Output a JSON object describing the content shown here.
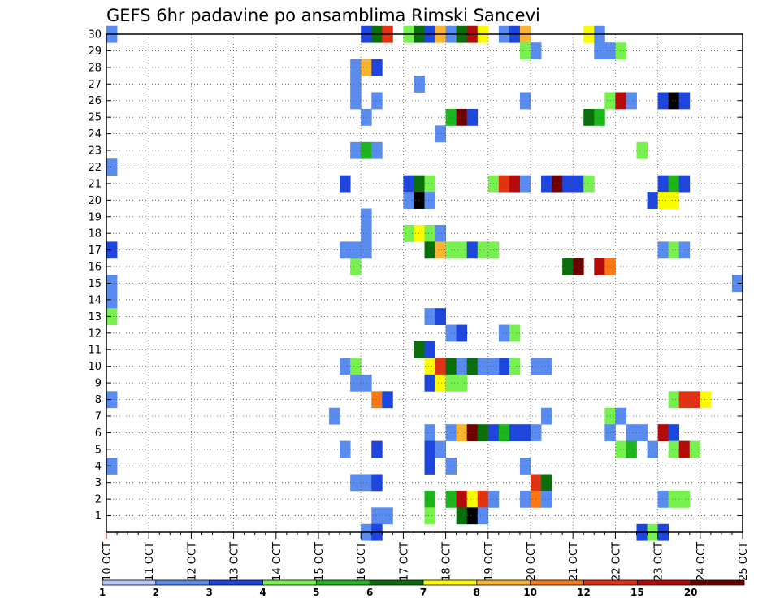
{
  "chart_data": {
    "type": "heatmap",
    "title": "GEFS 6hr padavine po ansamblima Rimski Sancevi",
    "xlabel": "",
    "ylabel": "",
    "x_tick_labels": [
      "10 OCT",
      "11 OCT",
      "12 OCT",
      "13 OCT",
      "14 OCT",
      "15 OCT",
      "16 OCT",
      "17 OCT",
      "18 OCT",
      "19 OCT",
      "20 OCT",
      "21 OCT",
      "22 OCT",
      "23 OCT",
      "24 OCT",
      "25 OCT"
    ],
    "y_tick_labels": [
      "1",
      "2",
      "3",
      "4",
      "5",
      "6",
      "7",
      "8",
      "9",
      "10",
      "11",
      "12",
      "13",
      "14",
      "15",
      "16",
      "17",
      "18",
      "19",
      "20",
      "21",
      "22",
      "23",
      "24",
      "25",
      "26",
      "27",
      "28",
      "29",
      "30"
    ],
    "xlim_steps": [
      0,
      60
    ],
    "ylim_members": [
      0,
      30
    ],
    "steps_per_day": 4,
    "grid": true,
    "colorbar": {
      "levels": [
        "1",
        "2",
        "3",
        "4",
        "5",
        "6",
        "7",
        "8",
        "10",
        "12",
        "15",
        "20"
      ],
      "colors": [
        "#b4c8fa",
        "#5a8cf0",
        "#1e46dc",
        "#78f050",
        "#1eb41e",
        "#0a6e0a",
        "#fafa00",
        "#fab432",
        "#fa7814",
        "#e13214",
        "#b40a0a",
        "#6e0000"
      ]
    },
    "cells": [
      [
        0,
        30,
        1
      ],
      [
        0,
        22,
        1
      ],
      [
        0,
        17,
        2
      ],
      [
        0,
        15,
        1
      ],
      [
        0,
        14,
        1
      ],
      [
        0,
        13,
        3
      ],
      [
        0,
        8,
        1
      ],
      [
        0,
        4,
        1
      ],
      [
        24,
        30,
        2
      ],
      [
        25,
        30,
        5
      ],
      [
        26,
        30,
        9
      ],
      [
        23,
        16,
        3
      ],
      [
        22,
        17,
        1
      ],
      [
        23,
        17,
        1
      ],
      [
        24,
        17,
        1
      ],
      [
        24,
        19,
        1
      ],
      [
        24,
        18,
        1
      ],
      [
        22,
        21,
        2
      ],
      [
        23,
        26,
        1
      ],
      [
        25,
        26,
        1
      ],
      [
        23,
        28,
        1
      ],
      [
        24,
        28,
        7
      ],
      [
        25,
        28,
        2
      ],
      [
        24,
        25,
        1
      ],
      [
        23,
        27,
        1
      ],
      [
        23,
        23,
        1
      ],
      [
        24,
        23,
        4
      ],
      [
        25,
        23,
        1
      ],
      [
        22,
        10,
        1
      ],
      [
        23,
        10,
        3
      ],
      [
        24,
        9,
        1
      ],
      [
        23,
        9,
        1
      ],
      [
        25,
        8,
        8
      ],
      [
        26,
        8,
        2
      ],
      [
        21,
        7,
        1
      ],
      [
        22,
        5,
        1
      ],
      [
        25,
        5,
        2
      ],
      [
        23,
        3,
        1
      ],
      [
        24,
        3,
        1
      ],
      [
        25,
        3,
        2
      ],
      [
        25,
        1,
        1
      ],
      [
        26,
        1,
        1
      ],
      [
        24,
        0,
        1
      ],
      [
        25,
        0,
        2
      ],
      [
        28,
        30,
        3
      ],
      [
        29,
        30,
        5
      ],
      [
        30,
        30,
        2
      ],
      [
        31,
        30,
        7
      ],
      [
        32,
        30,
        1
      ],
      [
        33,
        30,
        5
      ],
      [
        34,
        30,
        10
      ],
      [
        35,
        30,
        6
      ],
      [
        37,
        30,
        1
      ],
      [
        38,
        30,
        2
      ],
      [
        39,
        30,
        7
      ],
      [
        28,
        21,
        2
      ],
      [
        29,
        21,
        5
      ],
      [
        30,
        21,
        3
      ],
      [
        28,
        20,
        1
      ],
      [
        29,
        20,
        14
      ],
      [
        30,
        20,
        1
      ],
      [
        28,
        18,
        3
      ],
      [
        29,
        18,
        6
      ],
      [
        30,
        18,
        3
      ],
      [
        31,
        18,
        1
      ],
      [
        30,
        17,
        5
      ],
      [
        31,
        17,
        7
      ],
      [
        32,
        17,
        3
      ],
      [
        33,
        17,
        3
      ],
      [
        34,
        17,
        2
      ],
      [
        35,
        17,
        3
      ],
      [
        36,
        17,
        3
      ],
      [
        29,
        11,
        5
      ],
      [
        30,
        11,
        2
      ],
      [
        30,
        10,
        6
      ],
      [
        31,
        10,
        9
      ],
      [
        32,
        10,
        5
      ],
      [
        33,
        10,
        1
      ],
      [
        34,
        10,
        5
      ],
      [
        35,
        10,
        1
      ],
      [
        30,
        9,
        2
      ],
      [
        31,
        9,
        6
      ],
      [
        32,
        9,
        3
      ],
      [
        33,
        9,
        3
      ],
      [
        30,
        13,
        1
      ],
      [
        31,
        13,
        2
      ],
      [
        32,
        12,
        1
      ],
      [
        33,
        12,
        2
      ],
      [
        29,
        27,
        1
      ],
      [
        31,
        24,
        1
      ],
      [
        32,
        25,
        4
      ],
      [
        33,
        25,
        11
      ],
      [
        34,
        25,
        2
      ],
      [
        30,
        6,
        1
      ],
      [
        32,
        6,
        1
      ],
      [
        33,
        6,
        7
      ],
      [
        34,
        6,
        11
      ],
      [
        35,
        6,
        5
      ],
      [
        36,
        6,
        2
      ],
      [
        37,
        6,
        4
      ],
      [
        38,
        6,
        2
      ],
      [
        39,
        6,
        2
      ],
      [
        40,
        6,
        1
      ],
      [
        30,
        5,
        2
      ],
      [
        31,
        5,
        1
      ],
      [
        30,
        4,
        2
      ],
      [
        32,
        4,
        1
      ],
      [
        30,
        2,
        4
      ],
      [
        32,
        2,
        4
      ],
      [
        33,
        2,
        10
      ],
      [
        34,
        2,
        6
      ],
      [
        35,
        2,
        9
      ],
      [
        36,
        2,
        1
      ],
      [
        30,
        1,
        3
      ],
      [
        33,
        1,
        5
      ],
      [
        34,
        1,
        12
      ],
      [
        35,
        1,
        1
      ],
      [
        36,
        21,
        3
      ],
      [
        37,
        21,
        9
      ],
      [
        38,
        21,
        10
      ],
      [
        39,
        21,
        1
      ],
      [
        37,
        12,
        1
      ],
      [
        38,
        12,
        3
      ],
      [
        37,
        10,
        2
      ],
      [
        38,
        10,
        3
      ],
      [
        36,
        10,
        1
      ],
      [
        39,
        4,
        1
      ],
      [
        39,
        2,
        1
      ],
      [
        40,
        3,
        9
      ],
      [
        41,
        3,
        5
      ],
      [
        40,
        2,
        8
      ],
      [
        41,
        2,
        1
      ],
      [
        39,
        29,
        3
      ],
      [
        40,
        29,
        1
      ],
      [
        39,
        26,
        1
      ],
      [
        40,
        10,
        1
      ],
      [
        41,
        10,
        1
      ],
      [
        41,
        7,
        1
      ],
      [
        41,
        21,
        2
      ],
      [
        42,
        21,
        11
      ],
      [
        43,
        21,
        2
      ],
      [
        44,
        21,
        2
      ],
      [
        45,
        21,
        3
      ],
      [
        43,
        16,
        5
      ],
      [
        44,
        16,
        11
      ],
      [
        46,
        16,
        10
      ],
      [
        47,
        16,
        8
      ],
      [
        45,
        30,
        6
      ],
      [
        46,
        30,
        1
      ],
      [
        46,
        29,
        1
      ],
      [
        47,
        29,
        1
      ],
      [
        48,
        29,
        3
      ],
      [
        45,
        25,
        5
      ],
      [
        46,
        25,
        4
      ],
      [
        47,
        26,
        3
      ],
      [
        48,
        26,
        10
      ],
      [
        49,
        26,
        1
      ],
      [
        47,
        7,
        3
      ],
      [
        48,
        7,
        1
      ],
      [
        47,
        6,
        1
      ],
      [
        49,
        6,
        1
      ],
      [
        50,
        6,
        1
      ],
      [
        48,
        5,
        3
      ],
      [
        49,
        5,
        4
      ],
      [
        51,
        5,
        1
      ],
      [
        50,
        23,
        3
      ],
      [
        52,
        26,
        2
      ],
      [
        53,
        26,
        12
      ],
      [
        54,
        26,
        2
      ],
      [
        52,
        21,
        2
      ],
      [
        53,
        21,
        4
      ],
      [
        54,
        21,
        2
      ],
      [
        51,
        20,
        2
      ],
      [
        52,
        20,
        6
      ],
      [
        53,
        20,
        6
      ],
      [
        52,
        17,
        1
      ],
      [
        53,
        17,
        3
      ],
      [
        54,
        17,
        1
      ],
      [
        52,
        6,
        10
      ],
      [
        53,
        6,
        2
      ],
      [
        53,
        8,
        3
      ],
      [
        54,
        8,
        9
      ],
      [
        55,
        8,
        9
      ],
      [
        56,
        8,
        6
      ],
      [
        53,
        5,
        3
      ],
      [
        54,
        5,
        10
      ],
      [
        55,
        5,
        3
      ],
      [
        52,
        2,
        1
      ],
      [
        53,
        2,
        3
      ],
      [
        54,
        2,
        3
      ],
      [
        50,
        0,
        2
      ],
      [
        51,
        0,
        3
      ],
      [
        52,
        0,
        2
      ],
      [
        59,
        15,
        1
      ]
    ]
  }
}
